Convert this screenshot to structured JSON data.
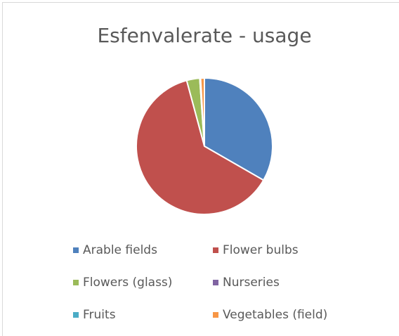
{
  "chart_data": {
    "type": "pie",
    "title": "Esfenvalerate - usage",
    "categories": [
      "Arable fields",
      "Flower bulbs",
      "Flowers (glass)",
      "Nurseries",
      "Fruits",
      "Vegetables (field)"
    ],
    "values": [
      33.3,
      62.5,
      3.1,
      0.1,
      0.1,
      0.9
    ],
    "colors": [
      "#4f81bd",
      "#c0504d",
      "#9bbb59",
      "#8064a2",
      "#4bacc6",
      "#f79646"
    ],
    "legend": "bottom"
  }
}
